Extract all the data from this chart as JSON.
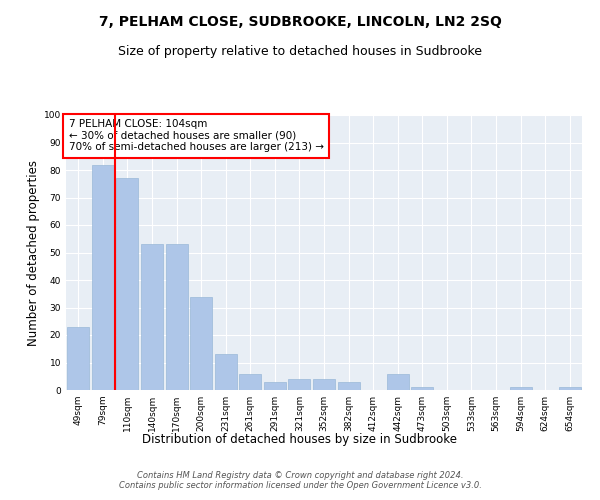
{
  "title": "7, PELHAM CLOSE, SUDBROOKE, LINCOLN, LN2 2SQ",
  "subtitle": "Size of property relative to detached houses in Sudbrooke",
  "xlabel": "Distribution of detached houses by size in Sudbrooke",
  "ylabel": "Number of detached properties",
  "categories": [
    "49sqm",
    "79sqm",
    "110sqm",
    "140sqm",
    "170sqm",
    "200sqm",
    "231sqm",
    "261sqm",
    "291sqm",
    "321sqm",
    "352sqm",
    "382sqm",
    "412sqm",
    "442sqm",
    "473sqm",
    "503sqm",
    "533sqm",
    "563sqm",
    "594sqm",
    "624sqm",
    "654sqm"
  ],
  "values": [
    23,
    82,
    77,
    53,
    53,
    34,
    13,
    6,
    3,
    4,
    4,
    3,
    0,
    6,
    1,
    0,
    0,
    0,
    1,
    0,
    1
  ],
  "bar_color": "#aec6e8",
  "bar_edge_color": "#9ab8d8",
  "vline_x": 1.5,
  "vline_color": "red",
  "annotation_text": "7 PELHAM CLOSE: 104sqm\n← 30% of detached houses are smaller (90)\n70% of semi-detached houses are larger (213) →",
  "annotation_box_color": "white",
  "annotation_box_edge_color": "red",
  "ylim": [
    0,
    100
  ],
  "yticks": [
    0,
    10,
    20,
    30,
    40,
    50,
    60,
    70,
    80,
    90,
    100
  ],
  "bg_color": "#e8eef5",
  "footnote": "Contains HM Land Registry data © Crown copyright and database right 2024.\nContains public sector information licensed under the Open Government Licence v3.0.",
  "title_fontsize": 10,
  "subtitle_fontsize": 9,
  "xlabel_fontsize": 8.5,
  "ylabel_fontsize": 8.5,
  "tick_fontsize": 6.5,
  "annotation_fontsize": 7.5,
  "footnote_fontsize": 6
}
